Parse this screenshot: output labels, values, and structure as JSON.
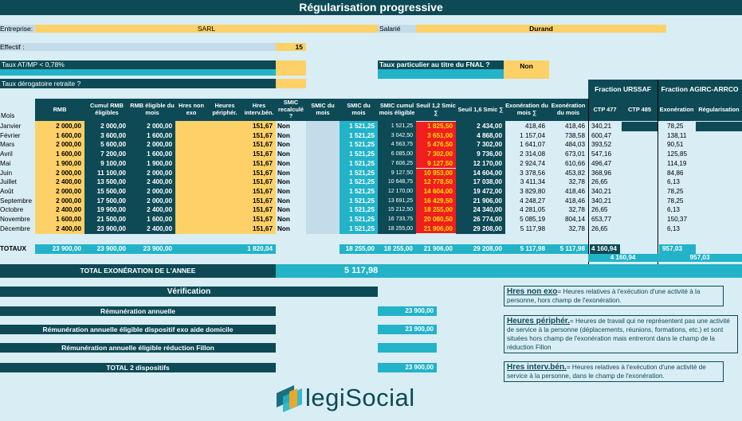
{
  "title": "Régularisation progressive",
  "entreprise": {
    "label": "Entreprise:",
    "value": "SARL"
  },
  "salarie": {
    "label": "Salarié",
    "value": "Durand"
  },
  "effectif": {
    "label": "Effectif :",
    "value": "15"
  },
  "taux_atmp": {
    "label": "Taux AT/MP < 0,78%"
  },
  "taux_fnal": {
    "label": "Taux particulier au titre du FNAL ?",
    "value": "Non"
  },
  "taux_derog": {
    "label": "Taux dérogatoire retraite ?"
  },
  "fraction_urssaf": "Fraction URSSAF",
  "fraction_agirc": "Fraction AGIRC-ARRCO",
  "headers": [
    "Mois",
    "RMB",
    "Cumul RMB éligibles",
    "RMB éligible du mois",
    "Hres non exo",
    "Heures périphér.",
    "Hres interv.bén.",
    "SMIC recalculé ?",
    "SMIC du mois",
    "SMIC du mois",
    "SMIC cumul mois éligible",
    "Seuil 1,2 Smic ∑",
    "Seuil 1,6 Smic ∑",
    "Exonération du mois ∑",
    "Exonération du mois",
    "CTP 477",
    "CTP 485",
    "Exonération",
    "Régularisation"
  ],
  "rows": [
    {
      "mois": "Janvier",
      "rmb": "2 000,00",
      "cumul": "2 000,00",
      "elig": "2 000,00",
      "hib": "151,67",
      "smic_rec": "Non",
      "smic2": "1 521,25",
      "smic_cumul": "1 521,25",
      "seuil12": "1 825,50",
      "seuil16": "2 434,00",
      "exo_sum": "418,46",
      "exo": "418,46",
      "ctp477": "340,21",
      "ctp485": "",
      "agirc": "78,25",
      "regul": ""
    },
    {
      "mois": "Février",
      "rmb": "1 600,00",
      "cumul": "3 600,00",
      "elig": "1 600,00",
      "hib": "151,67",
      "smic_rec": "Non",
      "smic2": "1 521,25",
      "smic_cumul": "3 042,50",
      "seuil12": "3 651,00",
      "seuil16": "4 868,00",
      "exo_sum": "1 157,04",
      "exo": "738,58",
      "ctp477": "600,47",
      "ctp485": "",
      "agirc": "138,11",
      "regul": ""
    },
    {
      "mois": "Mars",
      "rmb": "2 000,00",
      "cumul": "5 600,00",
      "elig": "2 000,00",
      "hib": "151,67",
      "smic_rec": "Non",
      "smic2": "1 521,25",
      "smic_cumul": "4 563,75",
      "seuil12": "5 476,50",
      "seuil16": "7 302,00",
      "exo_sum": "1 641,07",
      "exo": "484,03",
      "ctp477": "393,52",
      "ctp485": "",
      "agirc": "90,51",
      "regul": ""
    },
    {
      "mois": "Avril",
      "rmb": "1 600,00",
      "cumul": "7 200,00",
      "elig": "1 600,00",
      "hib": "151,67",
      "smic_rec": "Non",
      "smic2": "1 521,25",
      "smic_cumul": "6 085,00",
      "seuil12": "7 302,00",
      "seuil16": "9 736,00",
      "exo_sum": "2 314,08",
      "exo": "673,01",
      "ctp477": "547,16",
      "ctp485": "",
      "agirc": "125,85",
      "regul": ""
    },
    {
      "mois": "Mai",
      "rmb": "1 900,00",
      "cumul": "9 100,00",
      "elig": "1 900,00",
      "hib": "151,67",
      "smic_rec": "Non",
      "smic2": "1 521,25",
      "smic_cumul": "7 606,25",
      "seuil12": "9 127,50",
      "seuil16": "12 170,00",
      "exo_sum": "2 924,74",
      "exo": "610,66",
      "ctp477": "496,47",
      "ctp485": "",
      "agirc": "114,19",
      "regul": ""
    },
    {
      "mois": "Juin",
      "rmb": "2 000,00",
      "cumul": "11 100,00",
      "elig": "2 000,00",
      "hib": "151,67",
      "smic_rec": "Non",
      "smic2": "1 521,25",
      "smic_cumul": "9 127,50",
      "seuil12": "10 953,00",
      "seuil16": "14 604,00",
      "exo_sum": "3 378,56",
      "exo": "453,82",
      "ctp477": "368,96",
      "ctp485": "",
      "agirc": "84,86",
      "regul": ""
    },
    {
      "mois": "Juillet",
      "rmb": "2 400,00",
      "cumul": "13 500,00",
      "elig": "2 400,00",
      "hib": "151,67",
      "smic_rec": "Non",
      "smic2": "1 521,25",
      "smic_cumul": "10 648,75",
      "seuil12": "12 778,50",
      "seuil16": "17 038,00",
      "exo_sum": "3 411,34",
      "exo": "32,78",
      "ctp477": "26,65",
      "ctp485": "",
      "agirc": "6,13",
      "regul": ""
    },
    {
      "mois": "Août",
      "rmb": "2 000,00",
      "cumul": "15 500,00",
      "elig": "2 000,00",
      "hib": "151,67",
      "smic_rec": "Non",
      "smic2": "1 521,25",
      "smic_cumul": "12 170,00",
      "seuil12": "14 604,00",
      "seuil16": "19 472,00",
      "exo_sum": "3 829,80",
      "exo": "418,46",
      "ctp477": "340,21",
      "ctp485": "",
      "agirc": "78,25",
      "regul": ""
    },
    {
      "mois": "Septembre",
      "rmb": "2 000,00",
      "cumul": "17 500,00",
      "elig": "2 000,00",
      "hib": "151,67",
      "smic_rec": "Non",
      "smic2": "1 521,25",
      "smic_cumul": "13 691,25",
      "seuil12": "16 429,50",
      "seuil16": "21 906,00",
      "exo_sum": "4 248,27",
      "exo": "418,46",
      "ctp477": "340,21",
      "ctp485": "",
      "agirc": "78,25",
      "regul": ""
    },
    {
      "mois": "Octobre",
      "rmb": "2 400,00",
      "cumul": "19 900,00",
      "elig": "2 400,00",
      "hib": "151,67",
      "smic_rec": "Non",
      "smic2": "1 521,25",
      "smic_cumul": "15 212,50",
      "seuil12": "18 255,00",
      "seuil16": "24 340,00",
      "exo_sum": "4 281,05",
      "exo": "32,78",
      "ctp477": "26,65",
      "ctp485": "",
      "agirc": "6,13",
      "regul": ""
    },
    {
      "mois": "Novembre",
      "rmb": "1 600,00",
      "cumul": "21 500,00",
      "elig": "1 600,00",
      "hib": "151,67",
      "smic_rec": "Non",
      "smic2": "1 521,25",
      "smic_cumul": "16 733,75",
      "seuil12": "20 080,50",
      "seuil16": "26 774,00",
      "exo_sum": "5 085,19",
      "exo": "804,14",
      "ctp477": "653,77",
      "ctp485": "",
      "agirc": "150,37",
      "regul": ""
    },
    {
      "mois": "Décembre",
      "rmb": "2 400,00",
      "cumul": "23 900,00",
      "elig": "2 400,00",
      "hib": "151,67",
      "smic_rec": "Non",
      "smic2": "1 521,25",
      "smic_cumul": "18 255,00",
      "seuil12": "21 906,00",
      "seuil16": "29 208,00",
      "exo_sum": "5 117,98",
      "exo": "32,78",
      "ctp477": "26,65",
      "ctp485": "",
      "agirc": "6,13",
      "regul": ""
    }
  ],
  "totaux": {
    "label": "TOTAUX",
    "rmb": "23 900,00",
    "cumul": "23 900,00",
    "elig": "23 900,00",
    "hib": "1 820,04",
    "smic2": "18 255,00",
    "smic_cumul": "18 255,00",
    "seuil12": "21 906,00",
    "seuil16": "29 208,00",
    "exo_sum": "5 117,98",
    "exo": "5 117,98",
    "ctp477": "4 160,94",
    "agirc": "957,03",
    "ctp_total": "4 160,94",
    "agirc_total": "957,03"
  },
  "total_exo": {
    "label": "TOTAL EXONÉRATION DE L'ANNEE",
    "value": "5 117,98"
  },
  "verification": {
    "title": "Vérification",
    "items": [
      {
        "label": "Rémunération annuelle",
        "value": "23 900,00"
      },
      {
        "label": "Rémunération annuelle éligible dispositif exo aide domicile",
        "value": "23 900,00"
      },
      {
        "label": "Rémunération annuelle éligible réduction Fillon",
        "value": ""
      },
      {
        "label": "TOTAL 2 dispositifs",
        "value": "23 900,00"
      }
    ]
  },
  "notes": [
    {
      "kw": "Hres non exo",
      "text": "= Heures relatives à l'exécution d'une activité à la personne, hors champ de l'exonération."
    },
    {
      "kw": "Heures périphér.",
      "text": "= Heures de travail qui ne représentent pas une activité de service à la personne (déplacements, réunions, formations, etc.) et sont situées hors champ de l'exonération mais entreront dans le champ de la réduction Fillon"
    },
    {
      "kw": "Hres interv.bén.",
      "text": "= Heures relatives à l'exécution d'une activité de service à la personne, dans le champ de l'exonération."
    }
  ],
  "logo": {
    "text": "legiSocial"
  },
  "colors": {
    "dark": "#0d4a55",
    "teal": "#23b3c8",
    "yellow": "#fdd167",
    "red": "#f01e1e",
    "bg": "#d9edf5"
  }
}
